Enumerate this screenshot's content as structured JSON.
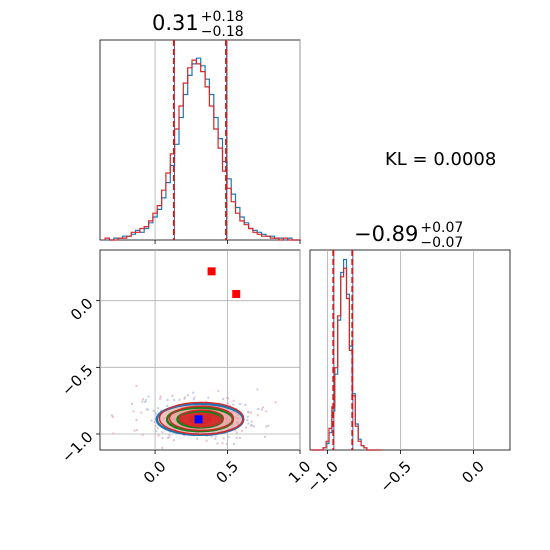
{
  "kl_label": "KL = 0.0008",
  "colors": {
    "series_blue": "#1f77b4",
    "series_red": "#d62728",
    "dashed_red": "#c81e1e",
    "dashed_blue": "#4a5a9c",
    "contour_green": "#1a7f1a",
    "fill_salmon": "#e8a0a0",
    "fill_red": "#d62728",
    "marker_red": "#ff0000",
    "marker_blue": "#0000ff",
    "grid": "#b0b0b0"
  },
  "chart_data": [
    {
      "id": "param1_marginal",
      "type": "histogram",
      "title": {
        "main": "0.31",
        "sup": "+0.18",
        "sub": "−0.18"
      },
      "xlim": [
        -0.38,
        1.0
      ],
      "grid": true,
      "bin_centers": [
        -0.33,
        -0.3,
        -0.27,
        -0.24,
        -0.21,
        -0.18,
        -0.15,
        -0.12,
        -0.09,
        -0.06,
        -0.03,
        0.0,
        0.03,
        0.06,
        0.09,
        0.12,
        0.15,
        0.18,
        0.21,
        0.24,
        0.27,
        0.3,
        0.33,
        0.36,
        0.39,
        0.42,
        0.45,
        0.48,
        0.51,
        0.54,
        0.57,
        0.6,
        0.63,
        0.66,
        0.69,
        0.72,
        0.75,
        0.78,
        0.81,
        0.84,
        0.87,
        0.9,
        0.93,
        0.96,
        0.99
      ],
      "series": [
        {
          "values": [
            0,
            0,
            1,
            1,
            2,
            2,
            3,
            5,
            4,
            6,
            9,
            12,
            16,
            22,
            30,
            39,
            50,
            64,
            76,
            86,
            92,
            95,
            91,
            84,
            76,
            64,
            53,
            41,
            32,
            24,
            17,
            12,
            9,
            6,
            5,
            4,
            3,
            2,
            2,
            1,
            1,
            0,
            1,
            0,
            0
          ]
        },
        {
          "values": [
            1,
            0,
            0,
            1,
            1,
            2,
            4,
            4,
            6,
            7,
            10,
            14,
            18,
            26,
            35,
            45,
            58,
            70,
            82,
            90,
            94,
            92,
            88,
            80,
            70,
            58,
            48,
            36,
            27,
            20,
            14,
            10,
            8,
            6,
            4,
            3,
            2,
            2,
            1,
            1,
            0,
            1,
            0,
            0,
            0
          ]
        }
      ],
      "quantile_lines": [
        0.13,
        0.49
      ],
      "xticks": [
        "0.0",
        "0.5",
        "1.0"
      ]
    },
    {
      "id": "param2_marginal",
      "type": "histogram",
      "title": {
        "main": "−0.89",
        "sup": "+0.07",
        "sub": "−0.07"
      },
      "xlim": [
        -1.12,
        0.25
      ],
      "grid": true,
      "bin_centers": [
        -1.1,
        -1.08,
        -1.06,
        -1.04,
        -1.02,
        -1.0,
        -0.98,
        -0.96,
        -0.94,
        -0.92,
        -0.9,
        -0.88,
        -0.86,
        -0.84,
        -0.82,
        -0.8,
        -0.78,
        -0.76,
        -0.74,
        -0.72,
        -0.7,
        -0.68,
        -0.66,
        -0.64
      ],
      "series": [
        {
          "values": [
            0,
            0,
            0,
            0,
            1,
            3,
            8,
            18,
            35,
            60,
            82,
            88,
            72,
            48,
            26,
            12,
            5,
            2,
            1,
            0,
            0,
            0,
            0,
            0
          ]
        },
        {
          "values": [
            0,
            0,
            0,
            0,
            1,
            4,
            10,
            20,
            38,
            62,
            80,
            84,
            70,
            46,
            25,
            11,
            4,
            2,
            1,
            0,
            0,
            0,
            0,
            0
          ]
        }
      ],
      "quantile_lines": [
        -0.96,
        -0.83
      ],
      "xticks": [
        "−1.0",
        "−0.5",
        "0.0"
      ]
    },
    {
      "id": "joint",
      "type": "contour",
      "xlim": [
        -0.38,
        1.0
      ],
      "ylim": [
        -1.12,
        0.38
      ],
      "grid": true,
      "center": [
        0.31,
        -0.89
      ],
      "sigma": [
        0.18,
        0.07
      ],
      "markers": [
        {
          "x": 0.39,
          "y": 0.22,
          "color": "red"
        },
        {
          "x": 0.56,
          "y": 0.05,
          "color": "red"
        },
        {
          "x": 0.3,
          "y": -0.89,
          "color": "blue"
        }
      ],
      "xticks": [
        "0.0",
        "0.5",
        "1.0"
      ],
      "yticks": [
        "0.0",
        "−0.5",
        "−1.0"
      ]
    }
  ]
}
